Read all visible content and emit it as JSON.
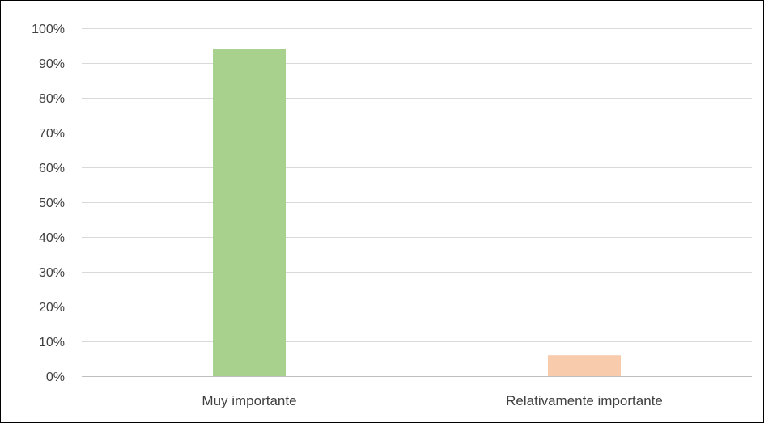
{
  "chart_data": {
    "type": "bar",
    "categories": [
      "Muy importante",
      "Relativamente importante"
    ],
    "values": [
      94,
      6
    ],
    "bar_colors": [
      "#a9d18e",
      "#f8cbad"
    ],
    "ylim": [
      0,
      100
    ],
    "yticks": [
      0,
      10,
      20,
      30,
      40,
      50,
      60,
      70,
      80,
      90,
      100
    ],
    "ytick_labels": [
      "0%",
      "10%",
      "20%",
      "30%",
      "40%",
      "50%",
      "60%",
      "70%",
      "80%",
      "90%",
      "100%"
    ],
    "grid": true,
    "legend": "none",
    "grid_color": "#d9d9d9",
    "axis_color": "#bfbfbf",
    "text_color": "#404040"
  }
}
